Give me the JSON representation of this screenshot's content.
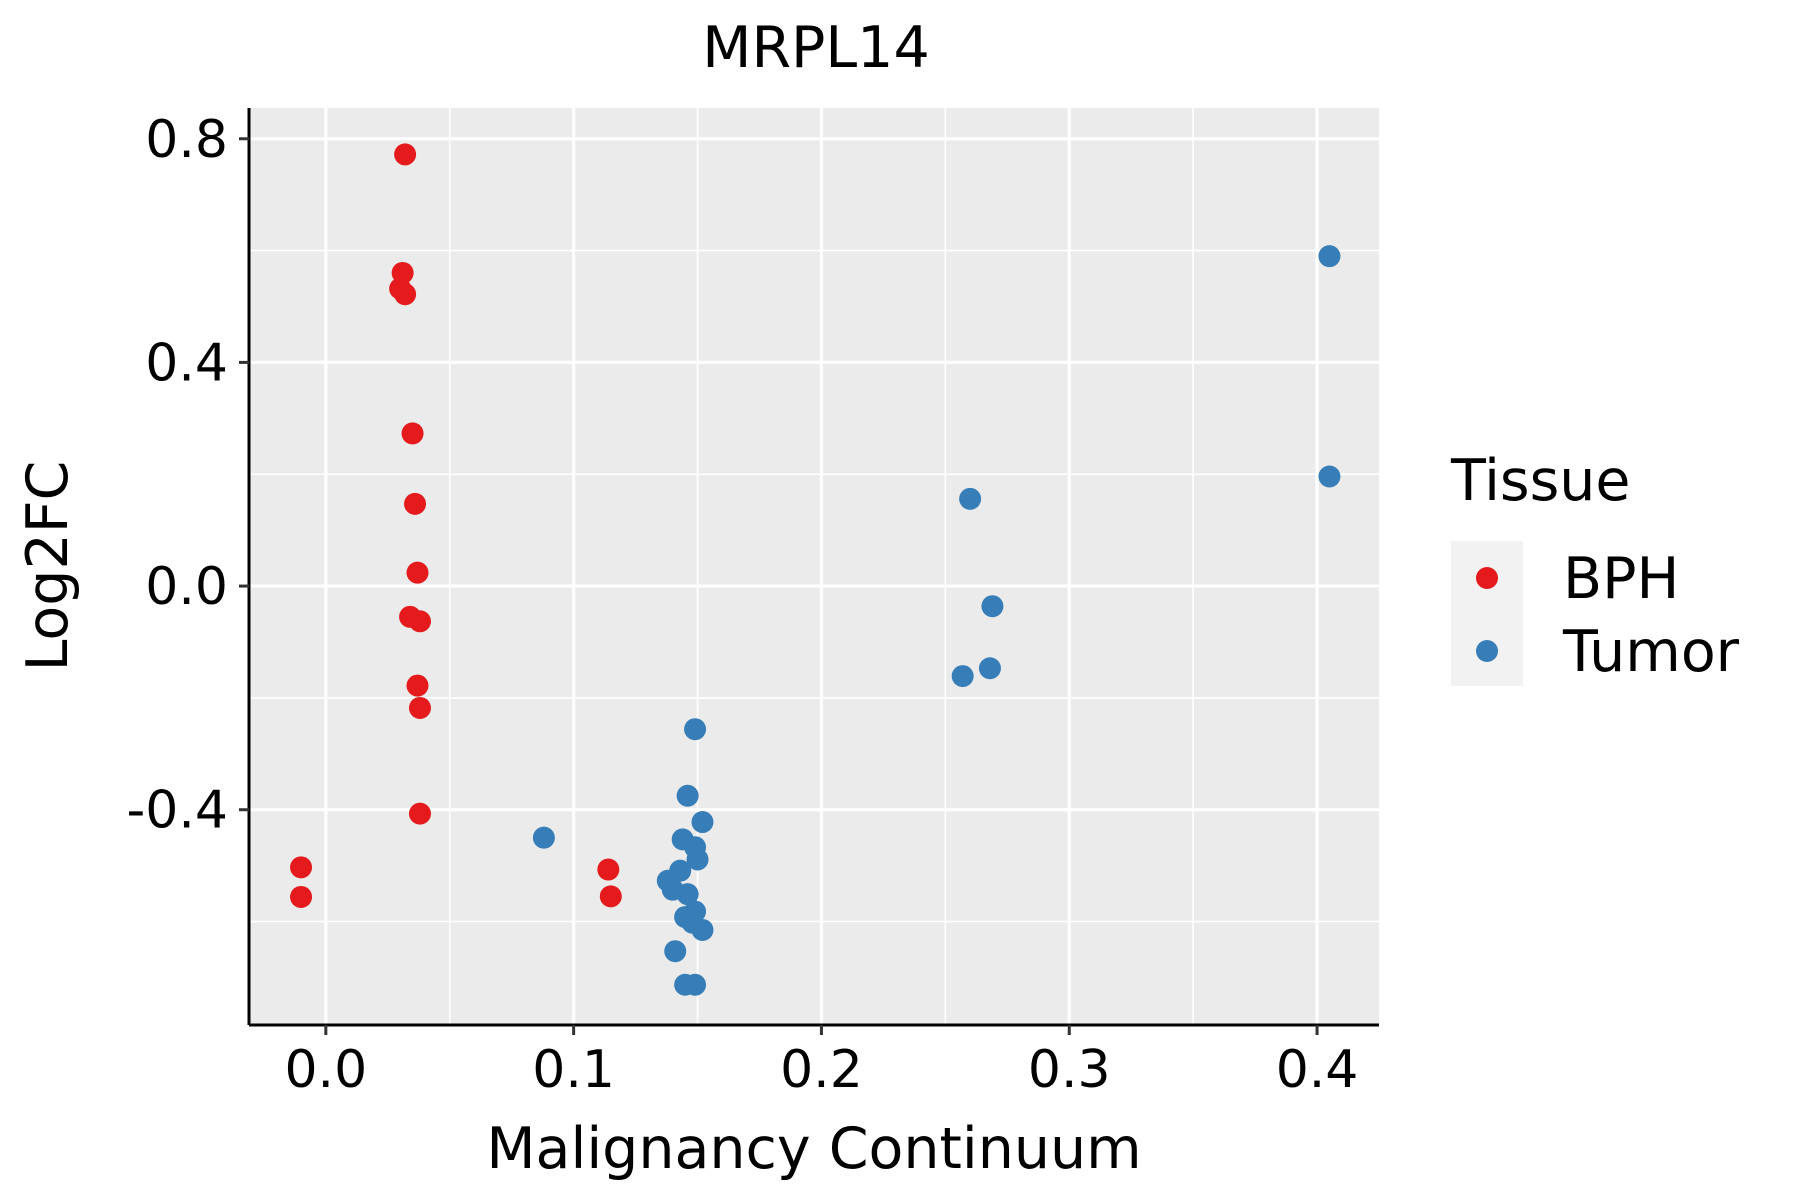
{
  "chart_data": {
    "type": "scatter",
    "title": "MRPL14",
    "xlabel": "Malignancy Continuum",
    "ylabel": "Log2FC",
    "xlim": [
      -0.031,
      0.425
    ],
    "ylim": [
      -0.785,
      0.855
    ],
    "x_ticks": [
      0.0,
      0.1,
      0.2,
      0.3,
      0.4
    ],
    "x_tick_labels": [
      "0.0",
      "0.1",
      "0.2",
      "0.3",
      "0.4"
    ],
    "y_ticks": [
      -0.4,
      0.0,
      0.4,
      0.8
    ],
    "y_tick_labels": [
      "-0.4",
      "0.0",
      "0.4",
      "0.8"
    ],
    "grid": true,
    "legend": {
      "title": "Tissue",
      "position": "right"
    },
    "series": [
      {
        "name": "BPH",
        "color": "#E41A1C",
        "points": [
          {
            "x": 0.032,
            "y": 0.772
          },
          {
            "x": 0.031,
            "y": 0.56
          },
          {
            "x": 0.03,
            "y": 0.532
          },
          {
            "x": 0.032,
            "y": 0.522
          },
          {
            "x": 0.035,
            "y": 0.273
          },
          {
            "x": 0.036,
            "y": 0.147
          },
          {
            "x": 0.037,
            "y": 0.024
          },
          {
            "x": 0.034,
            "y": -0.055
          },
          {
            "x": 0.038,
            "y": -0.063
          },
          {
            "x": 0.037,
            "y": -0.178
          },
          {
            "x": 0.038,
            "y": -0.218
          },
          {
            "x": 0.038,
            "y": -0.407
          },
          {
            "x": -0.01,
            "y": -0.503
          },
          {
            "x": -0.01,
            "y": -0.556
          },
          {
            "x": 0.114,
            "y": -0.507
          },
          {
            "x": 0.115,
            "y": -0.555
          }
        ]
      },
      {
        "name": "Tumor",
        "color": "#377EB8",
        "points": [
          {
            "x": 0.405,
            "y": 0.59
          },
          {
            "x": 0.405,
            "y": 0.196
          },
          {
            "x": 0.26,
            "y": 0.156
          },
          {
            "x": 0.269,
            "y": -0.036
          },
          {
            "x": 0.268,
            "y": -0.147
          },
          {
            "x": 0.257,
            "y": -0.161
          },
          {
            "x": 0.149,
            "y": -0.256
          },
          {
            "x": 0.146,
            "y": -0.375
          },
          {
            "x": 0.152,
            "y": -0.422
          },
          {
            "x": 0.088,
            "y": -0.45
          },
          {
            "x": 0.144,
            "y": -0.453
          },
          {
            "x": 0.149,
            "y": -0.467
          },
          {
            "x": 0.15,
            "y": -0.489
          },
          {
            "x": 0.143,
            "y": -0.509
          },
          {
            "x": 0.138,
            "y": -0.527
          },
          {
            "x": 0.14,
            "y": -0.543
          },
          {
            "x": 0.146,
            "y": -0.551
          },
          {
            "x": 0.149,
            "y": -0.582
          },
          {
            "x": 0.145,
            "y": -0.592
          },
          {
            "x": 0.148,
            "y": -0.602
          },
          {
            "x": 0.152,
            "y": -0.615
          },
          {
            "x": 0.141,
            "y": -0.653
          },
          {
            "x": 0.145,
            "y": -0.713
          },
          {
            "x": 0.149,
            "y": -0.713
          }
        ]
      }
    ]
  }
}
